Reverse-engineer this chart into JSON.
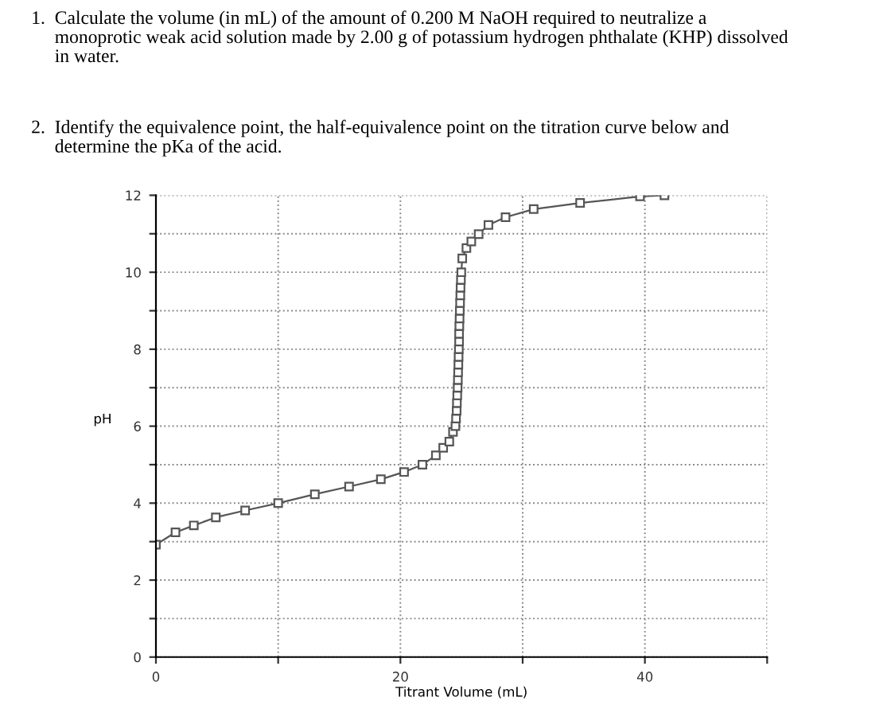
{
  "chart_data": {
    "type": "line",
    "annotations": [
      "1. Calculate the volume (in mL) of the amount of 0.200 M NaOH required to neutralize a\n     monoprotic weak acid solution made by 2.00 g of potassium hydrogen phthalate (KHP) dissolved\n     in water.",
      "2. Identify the equivalence point, the half-equivalence point on the titration curve below and\n     determine the pKa of the acid."
    ],
    "xlabel": "Titrant Volume (mL)",
    "ylabel": "pH",
    "series": [
      {
        "color": "#555555",
        "x": [
          0,
          1.6,
          3.1,
          4.9,
          7.3,
          10,
          13,
          15.8,
          18.4,
          20.3,
          21.8,
          22.9,
          23.5,
          24.0,
          24.3,
          24.5,
          24.55,
          24.6,
          24.62,
          24.65,
          24.68,
          24.7,
          24.72,
          24.74,
          24.76,
          24.78,
          24.8,
          24.8,
          24.82,
          24.84,
          24.86,
          24.88,
          24.9,
          24.92,
          24.95,
          24.98,
          25.06,
          25.4,
          25.8,
          26.4,
          27.2,
          28.6,
          30.9,
          34.7,
          39.6,
          41.6
        ],
        "values": [
          2.92,
          3.24,
          3.42,
          3.63,
          3.81,
          4.0,
          4.23,
          4.43,
          4.62,
          4.81,
          5.0,
          5.24,
          5.44,
          5.6,
          5.85,
          6.0,
          6.2,
          6.4,
          6.6,
          6.8,
          7.0,
          7.2,
          7.4,
          7.6,
          7.8,
          8.0,
          8.2,
          8.4,
          8.6,
          8.8,
          9.0,
          9.2,
          9.4,
          9.6,
          9.8,
          10.0,
          10.36,
          10.63,
          10.8,
          10.99,
          11.23,
          11.43,
          11.64,
          11.8,
          11.97,
          12.0
        ]
      }
    ],
    "xlim": [
      0,
      50
    ],
    "xticks": [
      0,
      {
        "value": 10,
        "label": null
      },
      20,
      {
        "value": 30,
        "label": null
      },
      40,
      {
        "value": 50,
        "label": null
      }
    ],
    "ylim": [
      0,
      12
    ],
    "yticks": [
      0,
      {
        "value": 1,
        "label": null
      },
      2,
      {
        "value": 3,
        "label": null
      },
      4,
      {
        "value": 5,
        "label": null
      },
      6,
      {
        "value": 7,
        "label": null
      },
      8,
      {
        "value": 9,
        "label": null
      },
      10,
      {
        "value": 11,
        "label": null
      },
      12
    ],
    "grid": true,
    "marker": "square",
    "line_style": "solid"
  }
}
